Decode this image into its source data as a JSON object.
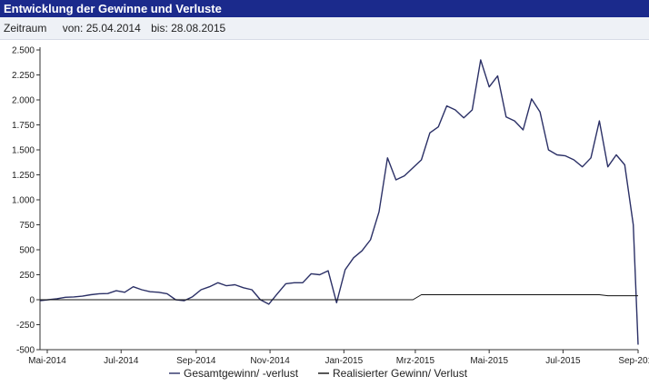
{
  "header": {
    "title": "Entwicklung der Gewinne und Verluste"
  },
  "filter": {
    "label": "Zeitraum",
    "from_text": "von: 25.04.2014",
    "to_text": "bis: 28.08.2015"
  },
  "colors": {
    "title_bg": "#1b2a8c",
    "series_total": "#2b3066",
    "series_realized": "#111111",
    "axis": "#333333",
    "grid": "#cccccc"
  },
  "chart_data": {
    "type": "line",
    "title": "",
    "xlabel": "",
    "ylabel": "",
    "ylim": [
      -500,
      2500
    ],
    "xlim": [
      "2014-04-25",
      "2015-09-01"
    ],
    "y_ticks": [
      -500,
      -250,
      0,
      250,
      500,
      750,
      1000,
      1250,
      1500,
      1750,
      2000,
      2250,
      2500
    ],
    "y_tick_labels": [
      "-500",
      "-250",
      "0",
      "250",
      "500",
      "750",
      "1.000",
      "1.250",
      "1.500",
      "1.750",
      "2.000",
      "2.250",
      "2.500"
    ],
    "x_ticks": [
      "2014-05-01",
      "2014-07-01",
      "2014-09-01",
      "2014-11-01",
      "2015-01-01",
      "2015-03-01",
      "2015-05-01",
      "2015-07-01",
      "2015-09-01"
    ],
    "x_tick_labels": [
      "Mai-2014",
      "Jul-2014",
      "Sep-2014",
      "Nov-2014",
      "Jan-2015",
      "Mrz-2015",
      "Mai-2015",
      "Jul-2015",
      "Sep-2015"
    ],
    "grid": false,
    "legend_position": "bottom",
    "series": [
      {
        "name": "Gesamtgewinn/ -verlust",
        "points": [
          [
            "2014-04-25",
            -10
          ],
          [
            "2014-05-02",
            0
          ],
          [
            "2014-05-09",
            10
          ],
          [
            "2014-05-16",
            25
          ],
          [
            "2014-05-23",
            28
          ],
          [
            "2014-05-30",
            35
          ],
          [
            "2014-06-06",
            50
          ],
          [
            "2014-06-13",
            60
          ],
          [
            "2014-06-20",
            62
          ],
          [
            "2014-06-27",
            90
          ],
          [
            "2014-07-04",
            75
          ],
          [
            "2014-07-11",
            130
          ],
          [
            "2014-07-18",
            100
          ],
          [
            "2014-07-25",
            80
          ],
          [
            "2014-08-01",
            75
          ],
          [
            "2014-08-08",
            60
          ],
          [
            "2014-08-15",
            0
          ],
          [
            "2014-08-22",
            -10
          ],
          [
            "2014-08-29",
            30
          ],
          [
            "2014-09-05",
            100
          ],
          [
            "2014-09-12",
            130
          ],
          [
            "2014-09-19",
            170
          ],
          [
            "2014-09-26",
            140
          ],
          [
            "2014-10-03",
            150
          ],
          [
            "2014-10-10",
            120
          ],
          [
            "2014-10-17",
            100
          ],
          [
            "2014-10-24",
            0
          ],
          [
            "2014-10-31",
            -45
          ],
          [
            "2014-11-07",
            60
          ],
          [
            "2014-11-14",
            160
          ],
          [
            "2014-11-21",
            170
          ],
          [
            "2014-11-28",
            170
          ],
          [
            "2014-12-05",
            260
          ],
          [
            "2014-12-12",
            250
          ],
          [
            "2014-12-19",
            290
          ],
          [
            "2014-12-26",
            -30
          ],
          [
            "2015-01-02",
            300
          ],
          [
            "2015-01-09",
            420
          ],
          [
            "2015-01-16",
            490
          ],
          [
            "2015-01-23",
            600
          ],
          [
            "2015-01-30",
            880
          ],
          [
            "2015-02-06",
            1420
          ],
          [
            "2015-02-13",
            1200
          ],
          [
            "2015-02-20",
            1240
          ],
          [
            "2015-02-27",
            1320
          ],
          [
            "2015-03-06",
            1400
          ],
          [
            "2015-03-13",
            1670
          ],
          [
            "2015-03-20",
            1730
          ],
          [
            "2015-03-27",
            1940
          ],
          [
            "2015-04-03",
            1900
          ],
          [
            "2015-04-10",
            1820
          ],
          [
            "2015-04-17",
            1900
          ],
          [
            "2015-04-24",
            2400
          ],
          [
            "2015-05-01",
            2130
          ],
          [
            "2015-05-08",
            2240
          ],
          [
            "2015-05-15",
            1830
          ],
          [
            "2015-05-22",
            1790
          ],
          [
            "2015-05-29",
            1700
          ],
          [
            "2015-06-05",
            2010
          ],
          [
            "2015-06-12",
            1880
          ],
          [
            "2015-06-19",
            1500
          ],
          [
            "2015-06-26",
            1450
          ],
          [
            "2015-07-03",
            1440
          ],
          [
            "2015-07-10",
            1400
          ],
          [
            "2015-07-17",
            1330
          ],
          [
            "2015-07-24",
            1420
          ],
          [
            "2015-07-31",
            1790
          ],
          [
            "2015-08-07",
            1330
          ],
          [
            "2015-08-14",
            1450
          ],
          [
            "2015-08-21",
            1350
          ],
          [
            "2015-08-28",
            750
          ],
          [
            "2015-09-01",
            -450
          ]
        ]
      },
      {
        "name": "Realisierter Gewinn/ Verlust",
        "points": [
          [
            "2014-04-25",
            0
          ],
          [
            "2015-02-27",
            0
          ],
          [
            "2015-03-06",
            50
          ],
          [
            "2015-07-31",
            50
          ],
          [
            "2015-08-07",
            40
          ],
          [
            "2015-09-01",
            40
          ]
        ]
      }
    ]
  }
}
